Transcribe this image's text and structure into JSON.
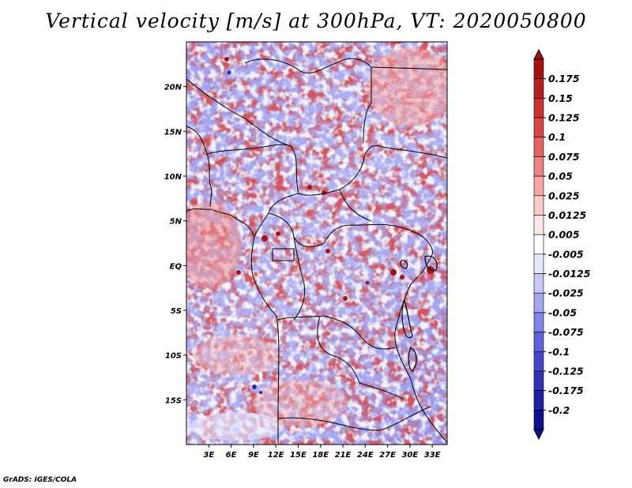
{
  "title": "Vertical velocity [m/s] at 300hPa, VT: 2020050800",
  "credit": "GrADS: IGES/COLA",
  "map": {
    "variable": "Vertical velocity",
    "units": "m/s",
    "level": "300hPa",
    "valid_time": "2020050800",
    "lon_range": [
      0,
      35
    ],
    "lat_range": [
      -20,
      25
    ],
    "lat_tick_labels": [
      "20N",
      "15N",
      "10N",
      "5N",
      "EQ",
      "5S",
      "10S",
      "15S"
    ],
    "lat_tick_values": [
      20,
      15,
      10,
      5,
      0,
      -5,
      -10,
      -15
    ],
    "lon_tick_labels": [
      "3E",
      "6E",
      "9E",
      "12E",
      "15E",
      "18E",
      "21E",
      "24E",
      "27E",
      "30E",
      "33E"
    ],
    "lon_tick_values": [
      3,
      6,
      9,
      12,
      15,
      18,
      21,
      24,
      27,
      30,
      33
    ]
  },
  "colorbar": {
    "labels": [
      "0.175",
      "0.15",
      "0.125",
      "0.1",
      "0.075",
      "0.05",
      "0.025",
      "0.0125",
      "0.005",
      "-0.005",
      "-0.0125",
      "-0.025",
      "-0.05",
      "-0.075",
      "-0.1",
      "-0.125",
      "-0.175",
      "-0.2"
    ],
    "colors": [
      "#a01414",
      "#b42020",
      "#c83232",
      "#d84646",
      "#e46262",
      "#ee8282",
      "#f6a6a6",
      "#fbcaca",
      "#fde6e6",
      "#ffffff",
      "#e6e6fb",
      "#c8c8f4",
      "#a6a6ee",
      "#8484e4",
      "#6262d8",
      "#4646c8",
      "#3232b4",
      "#2020a0",
      "#10108a"
    ]
  }
}
